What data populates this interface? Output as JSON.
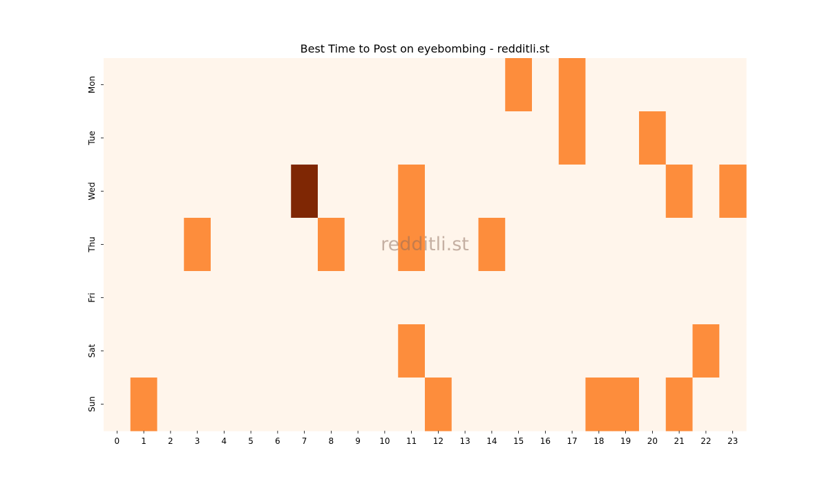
{
  "chart_data": {
    "type": "heatmap",
    "title": "Best Time to Post on eyebombing - redditli.st",
    "watermark": "redditli.st",
    "xlabel": "",
    "ylabel": "",
    "x": [
      "0",
      "1",
      "2",
      "3",
      "4",
      "5",
      "6",
      "7",
      "8",
      "9",
      "10",
      "11",
      "12",
      "13",
      "14",
      "15",
      "16",
      "17",
      "18",
      "19",
      "20",
      "21",
      "22",
      "23"
    ],
    "y": [
      "Mon",
      "Tue",
      "Wed",
      "Thu",
      "Fri",
      "Sat",
      "Sun"
    ],
    "values": [
      [
        0,
        0,
        0,
        0,
        0,
        0,
        0,
        0,
        0,
        0,
        0,
        0,
        0,
        0,
        0,
        1,
        0,
        1,
        0,
        0,
        0,
        0,
        0,
        0
      ],
      [
        0,
        0,
        0,
        0,
        0,
        0,
        0,
        0,
        0,
        0,
        0,
        0,
        0,
        0,
        0,
        0,
        0,
        1,
        0,
        0,
        1,
        0,
        0,
        0
      ],
      [
        0,
        0,
        0,
        0,
        0,
        0,
        0,
        2,
        0,
        0,
        0,
        1,
        0,
        0,
        0,
        0,
        0,
        0,
        0,
        0,
        0,
        1,
        0,
        1
      ],
      [
        0,
        0,
        0,
        1,
        0,
        0,
        0,
        0,
        1,
        0,
        0,
        1,
        0,
        0,
        1,
        0,
        0,
        0,
        0,
        0,
        0,
        0,
        0,
        0
      ],
      [
        0,
        0,
        0,
        0,
        0,
        0,
        0,
        0,
        0,
        0,
        0,
        0,
        0,
        0,
        0,
        0,
        0,
        0,
        0,
        0,
        0,
        0,
        0,
        0
      ],
      [
        0,
        0,
        0,
        0,
        0,
        0,
        0,
        0,
        0,
        0,
        0,
        1,
        0,
        0,
        0,
        0,
        0,
        0,
        0,
        0,
        0,
        0,
        1,
        0
      ],
      [
        0,
        1,
        0,
        0,
        0,
        0,
        0,
        0,
        0,
        0,
        0,
        0,
        1,
        0,
        0,
        0,
        0,
        0,
        1,
        1,
        0,
        1,
        0,
        0
      ]
    ],
    "value_range": [
      0,
      2
    ],
    "colormap": "Oranges",
    "colors": {
      "0": "#fff5eb",
      "1": "#fd8d3c",
      "2": "#7f2704"
    },
    "grid": false,
    "legend": "none"
  }
}
